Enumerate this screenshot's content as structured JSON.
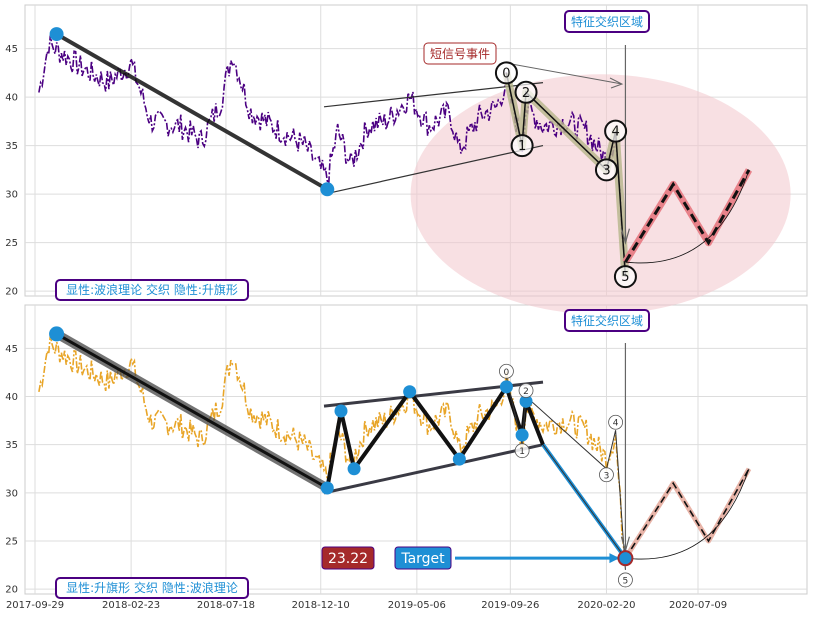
{
  "chart_data": [
    {
      "type": "line",
      "panel": "top",
      "ylim": [
        19.5,
        49.5
      ],
      "yticks": [
        "20",
        "25",
        "30",
        "35",
        "40",
        "45"
      ],
      "grid": true,
      "series_color": "#4b0082",
      "badge_region": "特征交织区域",
      "badge_event": "短信号事件",
      "badge_corner": "显性:波浪理论 交织 隐性:升旗形",
      "wave_labels": [
        "0",
        "1",
        "2",
        "3",
        "4",
        "5"
      ],
      "wave_points": [
        {
          "label": "0",
          "date": "2019-09-20",
          "value": 42.5
        },
        {
          "label": "1",
          "date": "2019-10-14",
          "value": 35.0
        },
        {
          "label": "2",
          "date": "2019-10-20",
          "value": 40.5
        },
        {
          "label": "3",
          "date": "2020-02-20",
          "value": 32.5
        },
        {
          "label": "4",
          "date": "2020-03-05",
          "value": 36.5
        },
        {
          "label": "5",
          "date": "2020-03-20",
          "value": 21.5
        }
      ],
      "pole_line": [
        {
          "date": "2017-11-01",
          "value": 46.5
        },
        {
          "date": "2018-12-20",
          "value": 30.5
        }
      ],
      "flag_upper": [
        {
          "date": "2018-12-15",
          "value": 39.0
        },
        {
          "date": "2019-11-15",
          "value": 41.5
        }
      ],
      "flag_lower": [
        {
          "date": "2018-12-15",
          "value": 30.0
        },
        {
          "date": "2019-11-15",
          "value": 35.0
        }
      ],
      "projection": [
        {
          "date": "2020-03-20",
          "value": 23.0
        },
        {
          "date": "2020-06-01",
          "value": 31.0
        },
        {
          "date": "2020-07-25",
          "value": 25.0
        },
        {
          "date": "2020-09-25",
          "value": 32.5
        }
      ],
      "region": {
        "center_date": "2020-03-05",
        "center_value": 30.5
      }
    },
    {
      "type": "line",
      "panel": "bottom",
      "ylim": [
        19.5,
        49.5
      ],
      "yticks": [
        "20",
        "25",
        "30",
        "35",
        "40",
        "45"
      ],
      "xticks": [
        "2017-09-29",
        "2018-02-23",
        "2018-07-18",
        "2018-12-10",
        "2019-05-06",
        "2019-09-26",
        "2020-02-20",
        "2020-07-09"
      ],
      "grid": true,
      "series_color": "#e8a528",
      "badge_region": "特征交织区域",
      "badge_corner": "显性:升旗形 交织 隐性:波浪理论",
      "badge_price": "23.22",
      "badge_target": "Target",
      "price_color": "#a52a2a",
      "target_color": "#1e8fd5",
      "wave_labels": [
        "0",
        "1",
        "2",
        "3",
        "4",
        "5"
      ],
      "wave_points": [
        {
          "label": "0",
          "date": "2019-09-20",
          "value": 42.0
        },
        {
          "label": "1",
          "date": "2019-10-14",
          "value": 35.0
        },
        {
          "label": "2",
          "date": "2019-10-20",
          "value": 40.0
        },
        {
          "label": "3",
          "date": "2020-02-20",
          "value": 32.5
        },
        {
          "label": "4",
          "date": "2020-03-05",
          "value": 36.5
        },
        {
          "label": "5",
          "date": "2020-03-20",
          "value": 22.0
        }
      ],
      "pole_line": [
        {
          "date": "2017-11-01",
          "value": 46.5
        },
        {
          "date": "2018-12-20",
          "value": 30.5
        }
      ],
      "flag_upper": [
        {
          "date": "2018-12-15",
          "value": 39.0
        },
        {
          "date": "2019-11-15",
          "value": 41.5
        }
      ],
      "flag_lower": [
        {
          "date": "2018-12-15",
          "value": 30.0
        },
        {
          "date": "2019-11-15",
          "value": 35.0
        }
      ],
      "zigzag": [
        {
          "date": "2018-12-20",
          "value": 30.5
        },
        {
          "date": "2019-01-10",
          "value": 38.5
        },
        {
          "date": "2019-01-30",
          "value": 32.5
        },
        {
          "date": "2019-04-25",
          "value": 40.5
        },
        {
          "date": "2019-07-10",
          "value": 33.5
        },
        {
          "date": "2019-09-20",
          "value": 41.0
        },
        {
          "date": "2019-10-14",
          "value": 36.0
        },
        {
          "date": "2019-10-20",
          "value": 39.5
        },
        {
          "date": "2019-11-15",
          "value": 35.0
        }
      ],
      "breakdown": [
        {
          "date": "2019-11-15",
          "value": 35.0
        },
        {
          "date": "2020-03-20",
          "value": 23.22
        }
      ],
      "projection": [
        {
          "date": "2020-03-20",
          "value": 23.22
        },
        {
          "date": "2020-06-01",
          "value": 31.0
        },
        {
          "date": "2020-07-25",
          "value": 25.0
        },
        {
          "date": "2020-09-25",
          "value": 32.5
        }
      ]
    }
  ]
}
